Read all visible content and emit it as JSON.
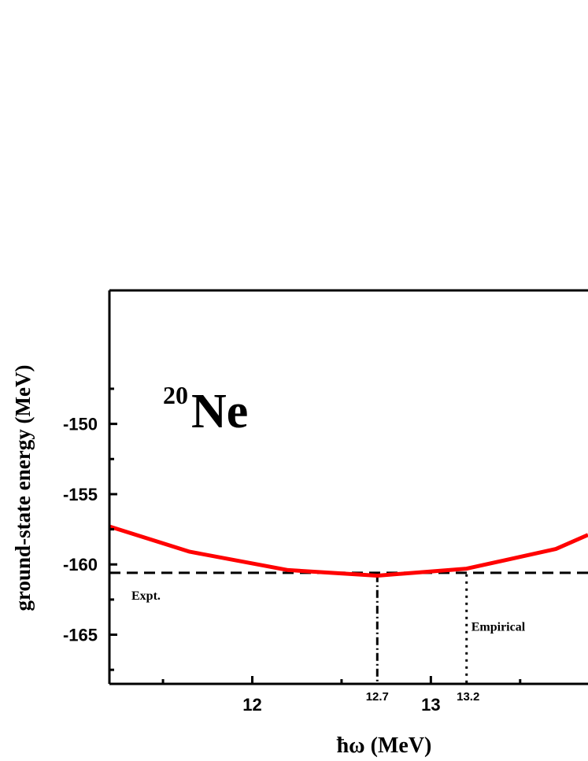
{
  "chart_data": {
    "type": "line",
    "xlabel": "ħω  (MeV)",
    "ylabel": "ground-state energy (MeV)",
    "xlim": [
      11.2,
      13.88
    ],
    "ylim": [
      -168.5,
      -140.5
    ],
    "x_ticks": [
      12,
      13
    ],
    "x_tick_labels": [
      "12",
      "13"
    ],
    "x_minor_ticks": [
      11.5,
      12.5,
      13.5
    ],
    "y_ticks": [
      -150,
      -155,
      -160,
      -165
    ],
    "y_tick_labels": [
      "-150",
      "-155",
      "-160",
      "-165"
    ],
    "y_minor_ticks": [
      -147.5,
      -152.5,
      -157.5,
      -162.5,
      -167.5
    ],
    "grid": false,
    "series": [
      {
        "x": [
          11.2,
          11.65,
          12.2,
          12.7,
          13.2,
          13.7,
          13.88
        ],
        "y": [
          -157.3,
          -159.1,
          -160.4,
          -160.8,
          -160.3,
          -158.9,
          -157.9
        ],
        "color": "#ff0000"
      }
    ],
    "reference_lines": [
      {
        "orientation": "horizontal",
        "value": -160.6,
        "style": "dashed",
        "label": "Expt."
      },
      {
        "orientation": "vertical",
        "value": 12.7,
        "style": "dashdot",
        "label": "12.7"
      },
      {
        "orientation": "vertical",
        "value": 13.2,
        "style": "dotted",
        "label": "13.2"
      }
    ],
    "annotations": {
      "empirical": "Empirical",
      "nucleus_mass": "20",
      "nucleus_symbol": "Ne"
    }
  }
}
